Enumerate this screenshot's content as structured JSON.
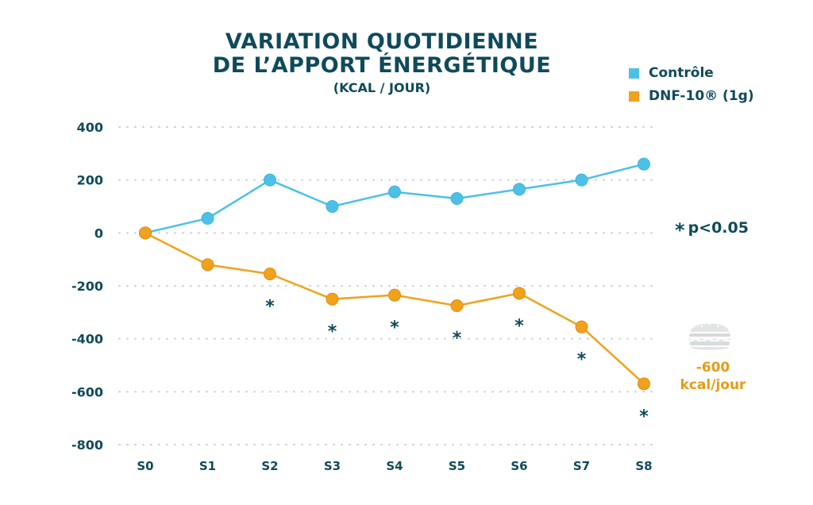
{
  "title": {
    "line1": "VARIATION QUOTIDIENNE",
    "line2": "DE L’APPORT ÉNERGÉTIQUE",
    "subtitle": "(KCAL / JOUR)"
  },
  "legend": [
    {
      "label": "Contrôle",
      "color": "#4dc0e8"
    },
    {
      "label": "DNF-10® (1g)",
      "color": "#f0a21c"
    }
  ],
  "significance_note": {
    "star": "*",
    "text": "p<0.05"
  },
  "annotation": {
    "value": "-600",
    "unit": "kcal/jour",
    "icon": "burger-icon"
  },
  "colors": {
    "text": "#0f4a5a",
    "control": "#4dc0e8",
    "dnf": "#f0a21c",
    "grid": "#c9cfd3"
  },
  "chart_data": {
    "type": "line",
    "categories": [
      "S0",
      "S1",
      "S2",
      "S3",
      "S4",
      "S5",
      "S6",
      "S7",
      "S8"
    ],
    "ylim": [
      -800,
      400
    ],
    "yticks": [
      "400",
      "200",
      "0",
      "-200",
      "-400",
      "-600",
      "-800"
    ],
    "grid": true,
    "series": [
      {
        "name": "Contrôle",
        "values": [
          0,
          55,
          200,
          100,
          155,
          130,
          165,
          200,
          260
        ]
      },
      {
        "name": "DNF-10® (1g)",
        "values": [
          0,
          -120,
          -155,
          -250,
          -235,
          -275,
          -228,
          -355,
          -570
        ]
      }
    ],
    "significance": [
      false,
      false,
      true,
      true,
      true,
      true,
      true,
      true,
      true
    ],
    "significance_symbol": "*"
  }
}
